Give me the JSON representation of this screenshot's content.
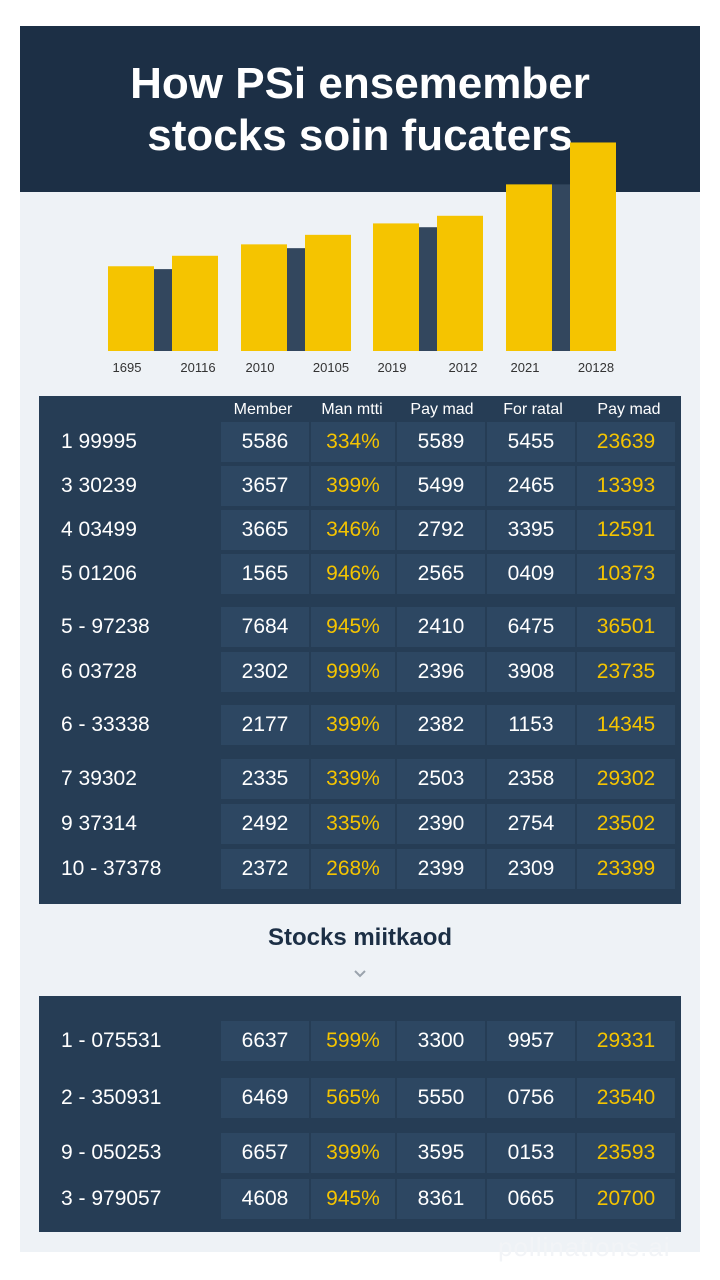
{
  "header": {
    "title_line1": "How PSi ensemember",
    "title_line2": "stocks soin fucaters"
  },
  "colors": {
    "navy": "#1c2f45",
    "table": "#263d55",
    "accent": "#f5c400",
    "bar_dark": "#33475e"
  },
  "chart_data": {
    "type": "bar",
    "categories": [
      "1695",
      "20116",
      "2010",
      "20105",
      "2019",
      "2012",
      "2021",
      "20128"
    ],
    "series": [
      {
        "values": [
          89,
          100,
          112,
          122,
          134,
          142,
          175,
          219
        ]
      },
      {
        "values": [
          86,
          0,
          108,
          0,
          130,
          0,
          175,
          0
        ]
      }
    ],
    "title": "",
    "xlabel": "",
    "ylabel": "",
    "ylim": [
      0,
      230
    ],
    "grid": false
  },
  "table": {
    "columns": [
      "Member",
      "Man mtti",
      "Pay mad",
      "For ratal",
      "Pay mad"
    ],
    "rows": [
      {
        "id": "1  99995",
        "c1": "5586",
        "c2": "334%",
        "c3": "5589",
        "c4": "5455",
        "c5": "23639"
      },
      {
        "id": "3  30239",
        "c1": "3657",
        "c2": "399%",
        "c3": "5499",
        "c4": "2465",
        "c5": "13393"
      },
      {
        "id": "4  03499",
        "c1": "3665",
        "c2": "346%",
        "c3": "2792",
        "c4": "3395",
        "c5": "12591"
      },
      {
        "id": "5  01206",
        "c1": "1565",
        "c2": "946%",
        "c3": "2565",
        "c4": "0409",
        "c5": "10373"
      },
      {
        "id": "5 - 97238",
        "c1": "7684",
        "c2": "945%",
        "c3": "2410",
        "c4": "6475",
        "c5": "36501"
      },
      {
        "id": "6  03728",
        "c1": "2302",
        "c2": "999%",
        "c3": "2396",
        "c4": "3908",
        "c5": "23735"
      },
      {
        "id": "6 - 33338",
        "c1": "2177",
        "c2": "399%",
        "c3": "2382",
        "c4": "1153",
        "c5": "14345"
      },
      {
        "id": "7  39302",
        "c1": "2335",
        "c2": "339%",
        "c3": "2503",
        "c4": "2358",
        "c5": "29302"
      },
      {
        "id": "9  37314",
        "c1": "2492",
        "c2": "335%",
        "c3": "2390",
        "c4": "2754",
        "c5": "23502"
      },
      {
        "id": "10 - 37378",
        "c1": "2372",
        "c2": "268%",
        "c3": "2399",
        "c4": "2309",
        "c5": "23399"
      }
    ]
  },
  "section2": {
    "subtitle": "Stocks miitkaod",
    "chevron_icon": "chevron-down-icon",
    "rows": [
      {
        "id": "1 - 075531",
        "c1": "6637",
        "c2": "599%",
        "c3": "3300",
        "c4": "9957",
        "c5": "29331"
      },
      {
        "id": "2 - 350931",
        "c1": "6469",
        "c2": "565%",
        "c3": "5550",
        "c4": "0756",
        "c5": "23540"
      },
      {
        "id": "9 - 050253",
        "c1": "6657",
        "c2": "399%",
        "c3": "3595",
        "c4": "0153",
        "c5": "23593"
      },
      {
        "id": "3 - 979057",
        "c1": "4608",
        "c2": "945%",
        "c3": "8361",
        "c4": "0665",
        "c5": "20700"
      }
    ]
  },
  "watermark": "pollinations.ai"
}
